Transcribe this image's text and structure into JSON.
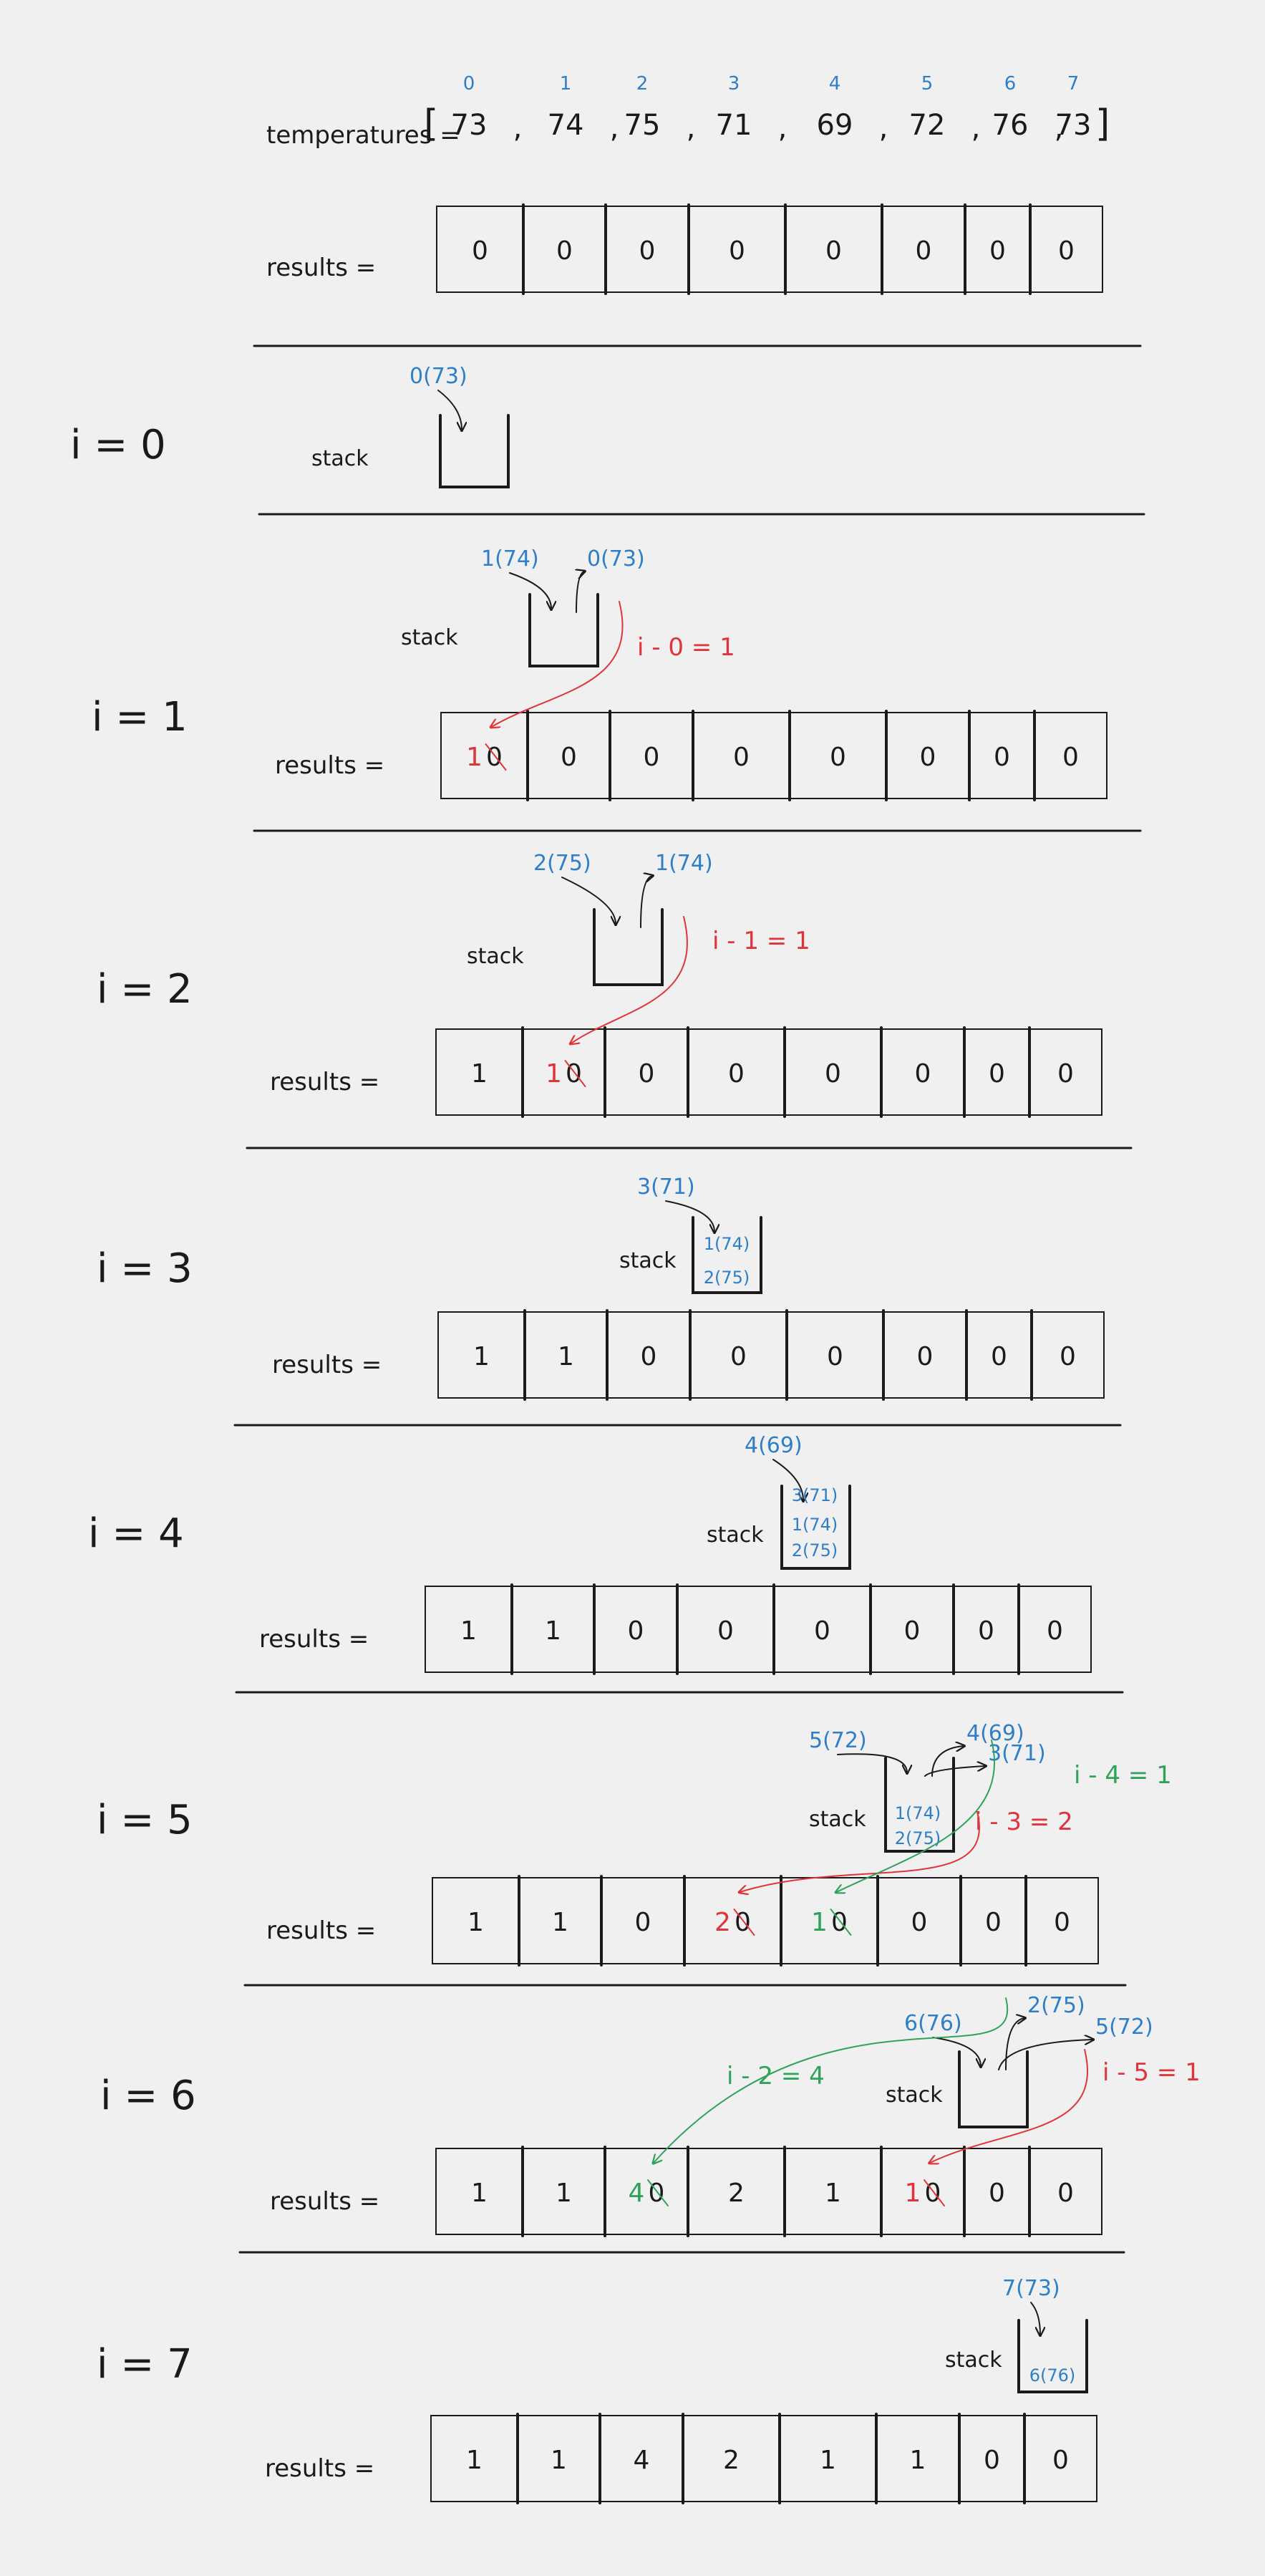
{
  "colors": {
    "ink": "#1a1a1a",
    "blue": "#2f7fc8",
    "red": "#e0343c",
    "green": "#2fa35a",
    "background": "#f0f0f0"
  },
  "temperatures": {
    "label": "temperatures =",
    "indices": [
      "0",
      "1",
      "2",
      "3",
      "4",
      "5",
      "6",
      "7"
    ],
    "values": [
      "73",
      "74",
      "75",
      "71",
      "69",
      "72",
      "76",
      "73"
    ]
  },
  "results_label": "results =",
  "stack_label": "stack",
  "initial_results": [
    "0",
    "0",
    "0",
    "0",
    "0",
    "0",
    "0",
    "0"
  ],
  "steps": [
    {
      "label": "i = 0",
      "push": "0(73)",
      "pop": [],
      "stack": [],
      "computations": [],
      "results": null
    },
    {
      "label": "i = 1",
      "push": "1(74)",
      "pop": [
        "0(73)"
      ],
      "stack": [],
      "computations": [
        {
          "text": "i - 0 = 1",
          "color": "red"
        }
      ],
      "results": [
        "1",
        "0",
        "0",
        "0",
        "0",
        "0",
        "0",
        "0"
      ],
      "updates": [
        {
          "index": 0,
          "value": "1",
          "color": "red"
        }
      ]
    },
    {
      "label": "i = 2",
      "push": "2(75)",
      "pop": [
        "1(74)"
      ],
      "stack": [],
      "computations": [
        {
          "text": "i - 1 = 1",
          "color": "red"
        }
      ],
      "results": [
        "1",
        "1",
        "0",
        "0",
        "0",
        "0",
        "0",
        "0"
      ],
      "updates": [
        {
          "index": 1,
          "value": "1",
          "color": "red"
        }
      ]
    },
    {
      "label": "i = 3",
      "push": "3(71)",
      "pop": [],
      "stack": [
        "1(74)",
        "2(75)"
      ],
      "computations": [],
      "results": [
        "1",
        "1",
        "0",
        "0",
        "0",
        "0",
        "0",
        "0"
      ],
      "updates": []
    },
    {
      "label": "i = 4",
      "push": "4(69)",
      "pop": [],
      "stack": [
        "3(71)",
        "1(74)",
        "2(75)"
      ],
      "computations": [],
      "results": [
        "1",
        "1",
        "0",
        "0",
        "0",
        "0",
        "0",
        "0"
      ],
      "updates": []
    },
    {
      "label": "i = 5",
      "push": "5(72)",
      "pop": [
        "4(69)",
        "3(71)"
      ],
      "stack": [
        "1(74)",
        "2(75)"
      ],
      "computations": [
        {
          "text": "i - 4 = 1",
          "color": "green"
        },
        {
          "text": "i - 3 = 2",
          "color": "red"
        }
      ],
      "results": [
        "1",
        "1",
        "0",
        "2",
        "1",
        "0",
        "0",
        "0"
      ],
      "updates": [
        {
          "index": 3,
          "value": "2",
          "color": "red"
        },
        {
          "index": 4,
          "value": "1",
          "color": "green"
        }
      ]
    },
    {
      "label": "i = 6",
      "push": "6(76)",
      "pop": [
        "2(75)",
        "5(72)"
      ],
      "stack": [],
      "computations": [
        {
          "text": "i - 2 = 4",
          "color": "green"
        },
        {
          "text": "i - 5 = 1",
          "color": "red"
        }
      ],
      "results": [
        "1",
        "1",
        "4",
        "2",
        "1",
        "1",
        "0",
        "0"
      ],
      "updates": [
        {
          "index": 2,
          "value": "4",
          "color": "green"
        },
        {
          "index": 5,
          "value": "1",
          "color": "red"
        }
      ]
    },
    {
      "label": "i = 7",
      "push": "7(73)",
      "pop": [],
      "stack": [
        "6(76)"
      ],
      "computations": [],
      "results": [
        "1",
        "1",
        "4",
        "2",
        "1",
        "1",
        "0",
        "0"
      ],
      "updates": []
    }
  ]
}
